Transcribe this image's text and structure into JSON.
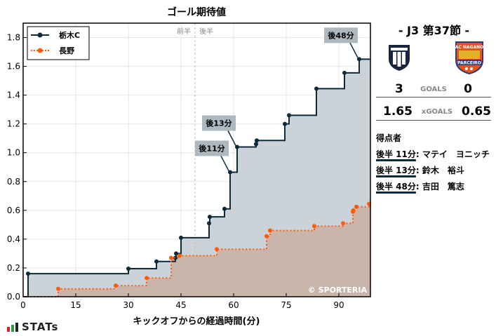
{
  "chart_data": {
    "type": "line",
    "title": "ゴール期待値",
    "xlabel": "キックオフからの経過時間(分)",
    "ylabel": "",
    "xlim": [
      0,
      99
    ],
    "ylim": [
      0,
      1.9
    ],
    "xticks": [
      0,
      15,
      30,
      45,
      60,
      75,
      90
    ],
    "yticks": [
      0.0,
      0.2,
      0.4,
      0.6,
      0.8,
      1.0,
      1.2,
      1.4,
      1.6,
      1.8
    ],
    "grid": true,
    "legend_position": "upper left",
    "half_marker": {
      "x": 49,
      "labels": [
        "前半",
        "後半"
      ]
    },
    "watermark": "© SPORTERIA",
    "series": [
      {
        "name": "栃木C",
        "color": "#0e2a3a",
        "style": "solid-step",
        "points": [
          [
            0,
            0
          ],
          [
            1.4,
            0.16
          ],
          [
            30,
            0.195
          ],
          [
            38,
            0.245
          ],
          [
            43.4,
            0.27
          ],
          [
            43.6,
            0.3
          ],
          [
            45,
            0.41
          ],
          [
            53,
            0.51
          ],
          [
            53.2,
            0.555
          ],
          [
            57.4,
            0.61
          ],
          [
            59,
            0.865
          ],
          [
            61,
            1.04
          ],
          [
            66.4,
            1.06
          ],
          [
            66.6,
            1.085
          ],
          [
            74.6,
            1.2
          ],
          [
            75.8,
            1.26
          ],
          [
            83.6,
            1.445
          ],
          [
            91.6,
            1.555
          ],
          [
            95.8,
            1.65
          ],
          [
            99,
            1.65
          ]
        ]
      },
      {
        "name": "長野",
        "color": "#ff5a0a",
        "style": "dotted-step",
        "points": [
          [
            0,
            0
          ],
          [
            10,
            0.055
          ],
          [
            26.4,
            0.077
          ],
          [
            35.2,
            0.13
          ],
          [
            42.2,
            0.27
          ],
          [
            44.6,
            0.285
          ],
          [
            55.2,
            0.33
          ],
          [
            69.4,
            0.42
          ],
          [
            70.4,
            0.46
          ],
          [
            83,
            0.49
          ],
          [
            91.2,
            0.51
          ],
          [
            94,
            0.59
          ],
          [
            94.1,
            0.6
          ],
          [
            95,
            0.625
          ],
          [
            98.6,
            0.645
          ],
          [
            99,
            0.65
          ]
        ]
      }
    ],
    "annotations": [
      {
        "text": "後11分",
        "x": 59,
        "y": 0.865
      },
      {
        "text": "後13分",
        "x": 61,
        "y": 1.04
      },
      {
        "text": "後48分",
        "x": 95.8,
        "y": 1.65
      }
    ]
  },
  "match": {
    "round": "- J3 第37節 -",
    "home_team": "栃木C",
    "away_team": "長野",
    "away_crest_text_top": "AC NAGANO",
    "away_crest_text_bottom": "PARCEIRO",
    "home_goals": "3",
    "away_goals": "0",
    "goals_label": "GOALS",
    "home_xg": "1.65",
    "away_xg": "0.65",
    "xg_label": "xGOALS"
  },
  "scorers": {
    "title": "得点者",
    "items": [
      {
        "time": "後半 11分",
        "name": "マテイ　ヨニッチ"
      },
      {
        "time": "後半 13分",
        "name": "鈴木　裕斗"
      },
      {
        "time": "後半 48分",
        "name": "吉田　篤志"
      }
    ]
  },
  "brand": {
    "label": "STATs"
  }
}
